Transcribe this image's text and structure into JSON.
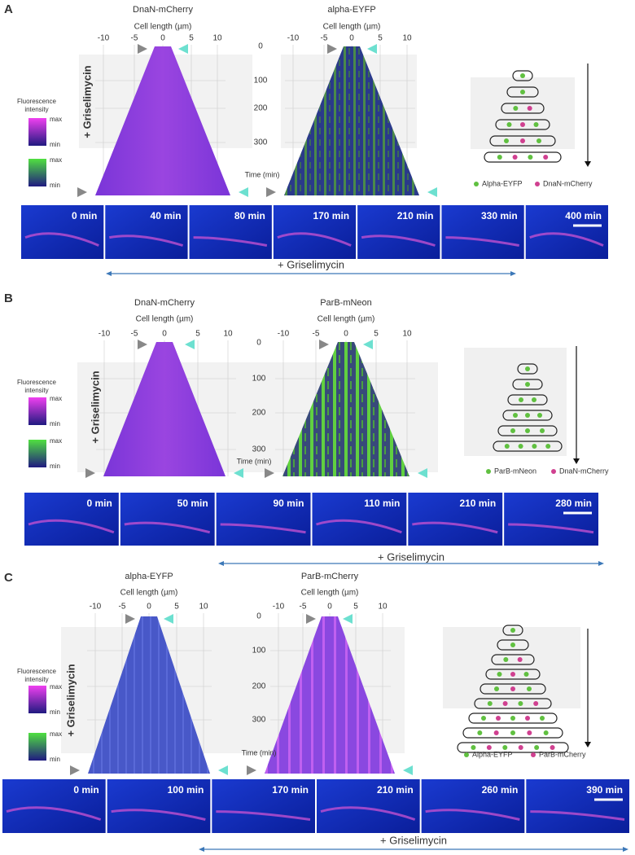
{
  "panels": [
    {
      "label": "A",
      "kymographs": [
        {
          "title": "DnaN-mCherry",
          "x_axis_label": "Cell length (µm)",
          "x_ticks": [
            "-10",
            "-5",
            "0",
            "5",
            "10"
          ]
        },
        {
          "title": "alpha-EYFP",
          "x_axis_label": "Cell length (µm)",
          "x_ticks": [
            "-10",
            "-5",
            "0",
            "5",
            "10"
          ]
        }
      ],
      "y_ticks": [
        "0",
        "100",
        "200",
        "300"
      ],
      "y_axis_label": "Time (min)",
      "treatment_label": "+ Griselimycin",
      "intensity_legend": {
        "title": [
          "Fluorescence",
          "intensity"
        ],
        "scales": [
          {
            "max": "max",
            "min": "min"
          },
          {
            "max": "max",
            "min": "min"
          }
        ]
      },
      "schematic_legend": [
        "Alpha-EYFP",
        "DnaN-mCherry"
      ],
      "frames": [
        "0 min",
        "40 min",
        "80  min",
        "170 min",
        "210 min",
        "330 min",
        "400 min"
      ],
      "treatment_bar_label": "+ Griselimycin"
    },
    {
      "label": "B",
      "kymographs": [
        {
          "title": "DnaN-mCherry",
          "x_axis_label": "Cell length (µm)",
          "x_ticks": [
            "-10",
            "-5",
            "0",
            "5",
            "10"
          ]
        },
        {
          "title": "ParB-mNeon",
          "x_axis_label": "Cell length (µm)",
          "x_ticks": [
            "-10",
            "-5",
            "0",
            "5",
            "10"
          ]
        }
      ],
      "y_ticks": [
        "0",
        "100",
        "200",
        "300"
      ],
      "y_axis_label": "Time (min)",
      "treatment_label": "+ Griselimycin",
      "intensity_legend": {
        "title": [
          "Fluorescence",
          "intensity"
        ],
        "scales": [
          {
            "max": "max",
            "min": "min"
          },
          {
            "max": "max",
            "min": "min"
          }
        ]
      },
      "schematic_legend": [
        "ParB-mNeon",
        "DnaN-mCherry"
      ],
      "frames": [
        "0 min",
        "50 min",
        "90 min",
        "110 min",
        "210 min",
        "280 min"
      ],
      "treatment_bar_label": "+ Griselimycin"
    },
    {
      "label": "C",
      "kymographs": [
        {
          "title": "alpha-EYFP",
          "x_axis_label": "Cell length (µm)",
          "x_ticks": [
            "-10",
            "-5",
            "0",
            "5",
            "10"
          ]
        },
        {
          "title": "ParB-mCherry",
          "x_axis_label": "Cell length (µm)",
          "x_ticks": [
            "-10",
            "-5",
            "0",
            "5",
            "10"
          ]
        }
      ],
      "y_ticks": [
        "0",
        "100",
        "200",
        "300"
      ],
      "y_axis_label": "Time (min)",
      "treatment_label": "+ Griselimycin",
      "intensity_legend": {
        "title": [
          "Fluorescence",
          "intensity"
        ],
        "scales": [
          {
            "max": "max",
            "min": "min"
          },
          {
            "max": "max",
            "min": "min"
          }
        ]
      },
      "schematic_legend": [
        "Alpha-EYFP",
        "ParB-mCherry"
      ],
      "frames": [
        "0 min",
        "100 min",
        "170 min",
        "210 min",
        "260 min",
        "390 min"
      ],
      "treatment_bar_label": "+ Griselimycin"
    }
  ]
}
